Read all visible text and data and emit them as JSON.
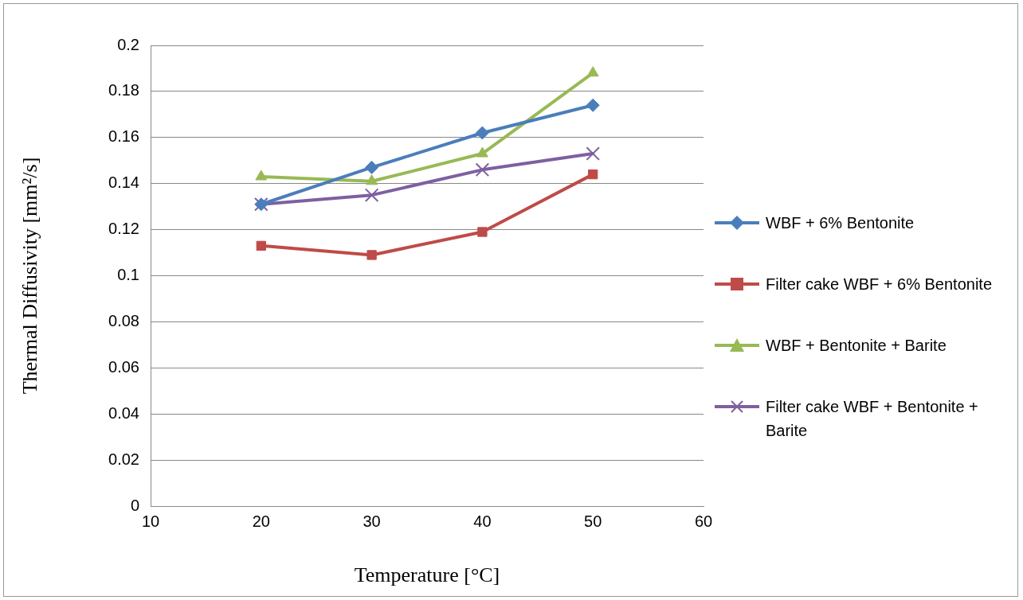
{
  "chart_data": {
    "type": "line",
    "xlabel": "Temperature [°C]",
    "ylabel": "Thermal Diffusivity [mm²/s]",
    "x": [
      20,
      30,
      40,
      50
    ],
    "series": [
      {
        "name": "WBF + 6% Bentonite",
        "color": "#4a7ebb",
        "marker": "diamond",
        "values": [
          0.131,
          0.147,
          0.162,
          0.174
        ]
      },
      {
        "name": "Filter cake WBF + 6% Bentonite",
        "color": "#be4b48",
        "marker": "square",
        "values": [
          0.113,
          0.109,
          0.119,
          0.144
        ]
      },
      {
        "name": "WBF + Bentonite + Barite",
        "color": "#98b954",
        "marker": "triangle",
        "values": [
          0.143,
          0.141,
          0.153,
          0.188
        ]
      },
      {
        "name": "Filter cake WBF + Bentonite + Barite",
        "color": "#7d60a0",
        "marker": "cross",
        "values": [
          0.131,
          0.135,
          0.146,
          0.153
        ]
      }
    ],
    "xlim": [
      10,
      60
    ],
    "xticks": [
      10,
      20,
      30,
      40,
      50,
      60
    ],
    "ylim": [
      0,
      0.2
    ],
    "yticks": [
      0,
      0.02,
      0.04,
      0.06,
      0.08,
      0.1,
      0.12,
      0.14,
      0.16,
      0.18,
      0.2
    ],
    "grid": "y",
    "legend": "right",
    "line_style": "solid"
  }
}
